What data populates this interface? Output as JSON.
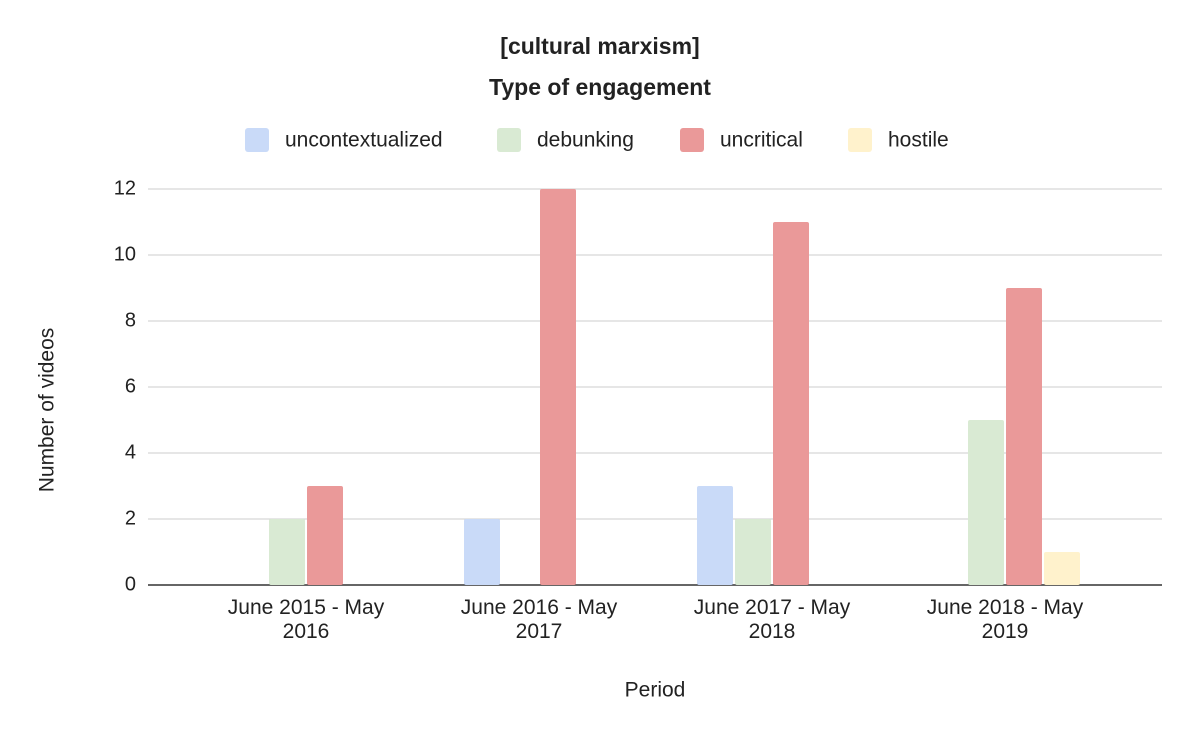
{
  "chart_data": {
    "type": "bar",
    "title": "[cultural marxism]",
    "subtitle": "Type of engagement",
    "x_label": "Period",
    "y_label": "Number of videos",
    "categories": [
      "June 2015 - May 2016",
      "June 2016 - May 2017",
      "June 2017 - May 2018",
      "June 2018 - May 2019"
    ],
    "series": [
      {
        "name": "uncontextualized",
        "color": "#c9daf8",
        "values": [
          0,
          2,
          3,
          0
        ]
      },
      {
        "name": "debunking",
        "color": "#d9ead3",
        "values": [
          2,
          0,
          2,
          5
        ]
      },
      {
        "name": "uncritical",
        "color": "#ea9999",
        "values": [
          3,
          12,
          11,
          9
        ]
      },
      {
        "name": "hostile",
        "color": "#fff2cc",
        "values": [
          0,
          0,
          0,
          1
        ]
      }
    ],
    "ylim": [
      0,
      12
    ],
    "yticks": [
      0,
      2,
      4,
      6,
      8,
      10,
      12
    ],
    "grid": true,
    "legend": "top"
  }
}
